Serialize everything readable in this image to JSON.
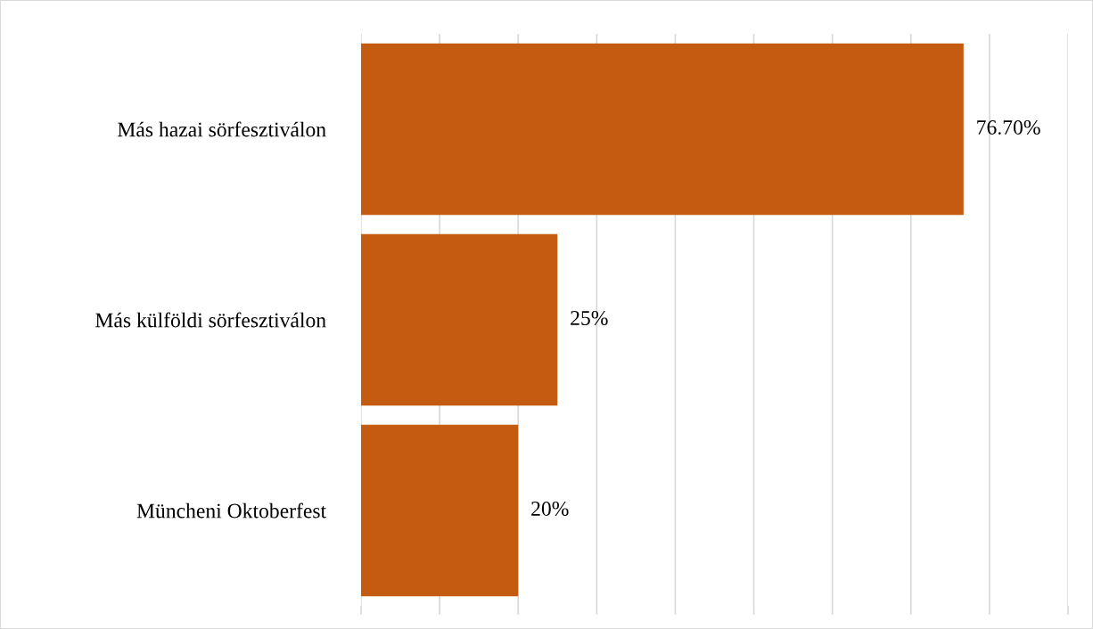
{
  "chart_data": {
    "type": "bar",
    "orientation": "horizontal",
    "categories": [
      "Más hazai sörfesztiválon",
      "Más külföldi sörfesztiválon",
      "Müncheni Oktoberfest"
    ],
    "values": [
      76.7,
      25,
      20
    ],
    "color": "#c55a11",
    "value_labels": [
      "76.70%",
      "25%",
      "20%"
    ],
    "xlim": [
      0,
      90
    ],
    "xticks": [
      {
        "value": 0,
        "label": null
      },
      {
        "value": 10,
        "label": null
      },
      {
        "value": 20,
        "label": null
      },
      {
        "value": 30,
        "label": null
      },
      {
        "value": 40,
        "label": null
      },
      {
        "value": 50,
        "label": null
      },
      {
        "value": 60,
        "label": null
      },
      {
        "value": 70,
        "label": null
      },
      {
        "value": 80,
        "label": null
      },
      {
        "value": 90,
        "label": null
      }
    ],
    "grid": "x"
  }
}
